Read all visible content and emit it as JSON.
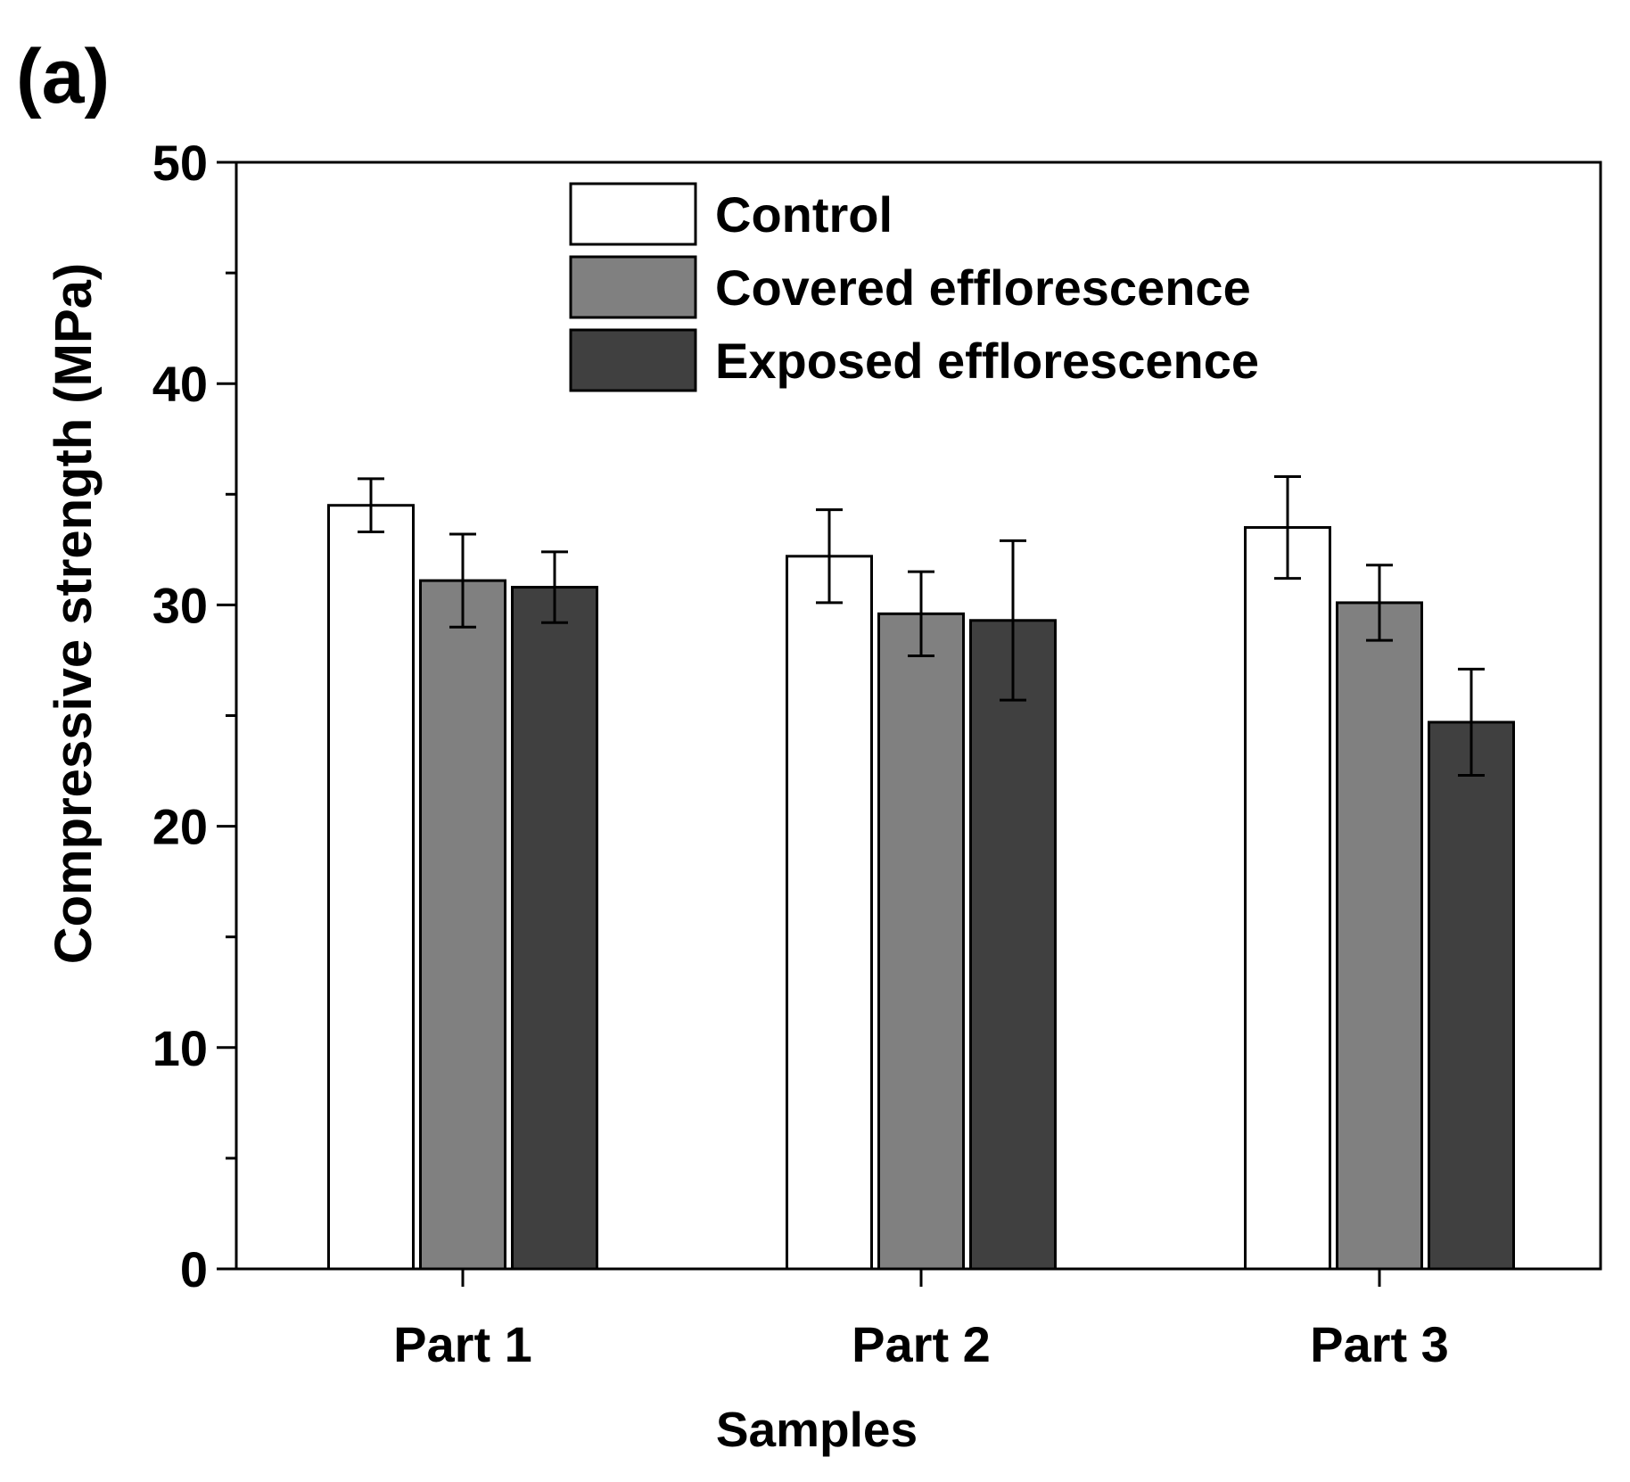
{
  "panel_label": "(a)",
  "colors": {
    "axis": "#000000",
    "control": "#ffffff",
    "covered": "#808080",
    "exposed": "#404040",
    "bar_edge": "#000000"
  },
  "chart_data": {
    "type": "bar",
    "title": "",
    "xlabel": "Samples",
    "ylabel": "Compressive strength (MPa)",
    "ylim": [
      0,
      50
    ],
    "y_major_ticks": [
      0,
      10,
      20,
      30,
      40,
      50
    ],
    "y_minor_ticks": [
      5,
      15,
      25,
      35,
      45
    ],
    "categories": [
      "Part 1",
      "Part 2",
      "Part 3"
    ],
    "legend_position": "top-center",
    "series": [
      {
        "name": "Control",
        "color": "#ffffff",
        "values": [
          34.5,
          32.2,
          33.5
        ],
        "errors": [
          1.2,
          2.1,
          2.3
        ]
      },
      {
        "name": "Covered efflorescence",
        "color": "#808080",
        "values": [
          31.1,
          29.6,
          30.1
        ],
        "errors": [
          2.1,
          1.9,
          1.7
        ]
      },
      {
        "name": "Exposed efflorescence",
        "color": "#404040",
        "values": [
          30.8,
          29.3,
          24.7
        ],
        "errors": [
          1.6,
          3.6,
          2.4
        ]
      }
    ]
  }
}
